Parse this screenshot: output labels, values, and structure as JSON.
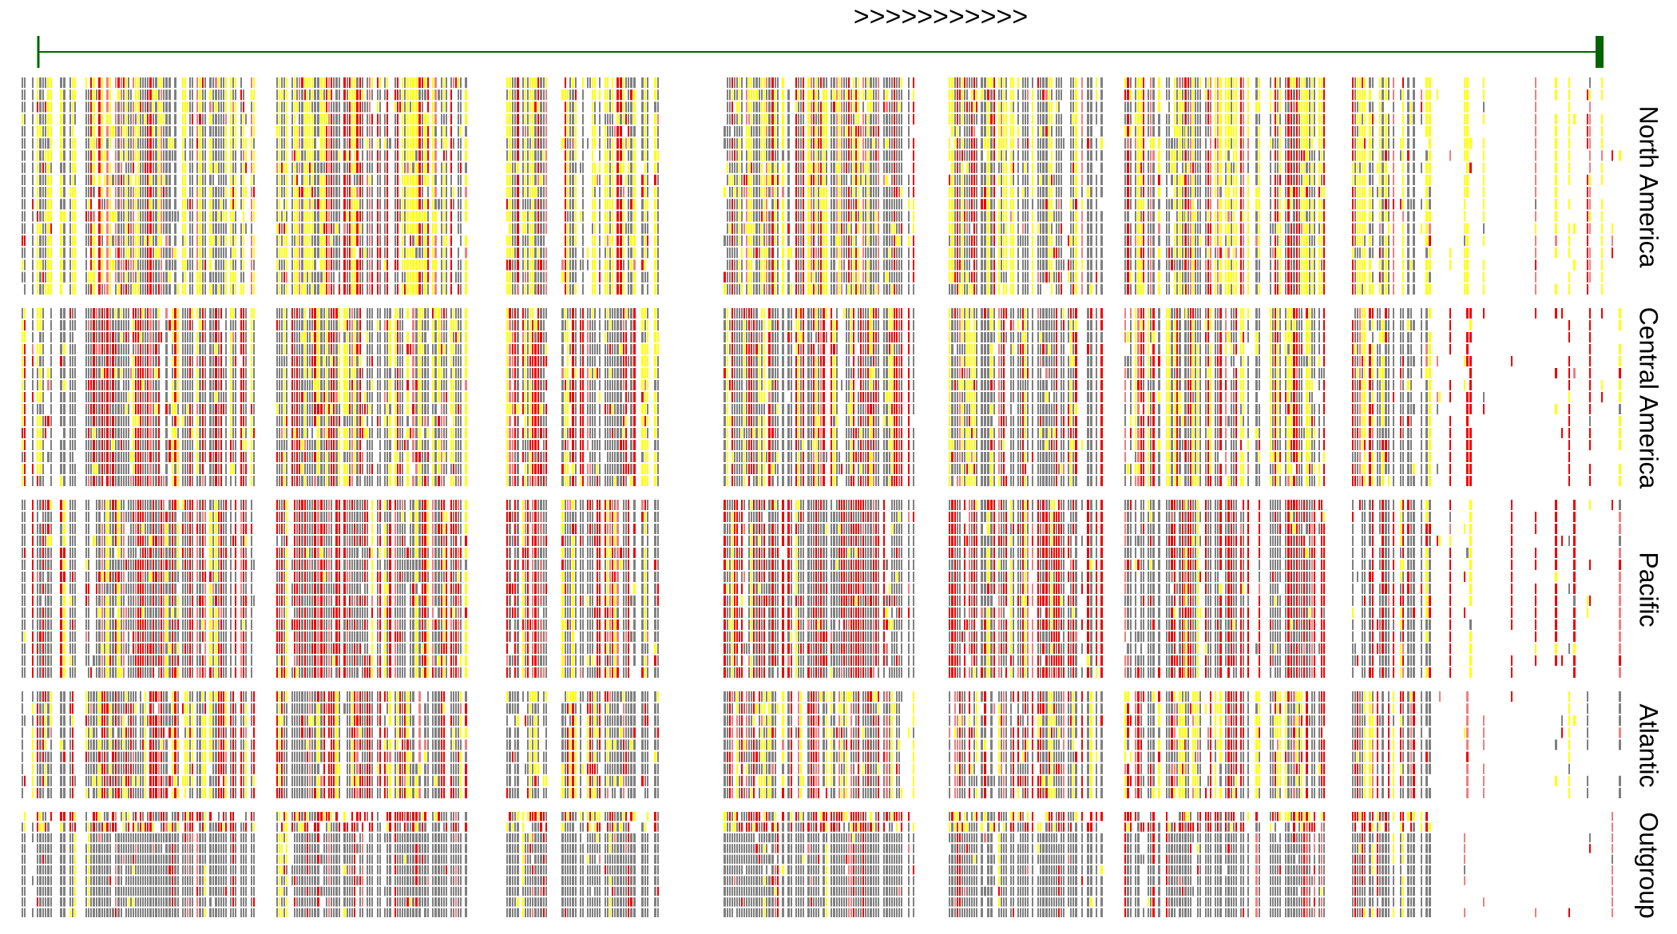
{
  "chart_data": {
    "type": "heatmap",
    "title": "",
    "direction_label": ">>>>>>>>>>>",
    "colors": {
      "ref": "#808080",
      "var_yellow": "#ffff00",
      "var_red": "#ee0000",
      "var_pink": "#f08080",
      "axis": "#006400",
      "background": "#ffffff"
    },
    "groups": [
      {
        "label": "North America",
        "rows": 18
      },
      {
        "label": "Central America",
        "rows": 15
      },
      {
        "label": "Pacific",
        "rows": 15
      },
      {
        "label": "Atlantic",
        "rows": 9
      },
      {
        "label": "Outgroup",
        "rows": 10
      }
    ],
    "group_profiles": [
      {
        "ref": 0.42,
        "yellow": 0.28,
        "red": 0.14,
        "pink": 0.06
      },
      {
        "ref": 0.44,
        "yellow": 0.22,
        "red": 0.2,
        "pink": 0.06
      },
      {
        "ref": 0.46,
        "yellow": 0.1,
        "red": 0.3,
        "pink": 0.06
      },
      {
        "ref": 0.44,
        "yellow": 0.2,
        "red": 0.2,
        "pink": 0.06
      },
      {
        "ref": 0.82,
        "yellow": 0.03,
        "red": 0.07,
        "pink": 0.03
      }
    ]
  }
}
